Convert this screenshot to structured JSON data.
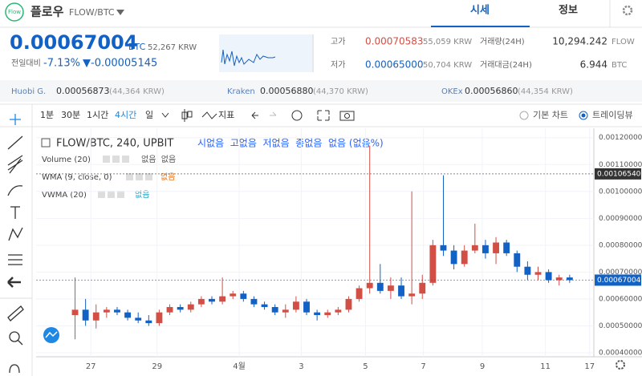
{
  "header": {
    "logo": "Flow",
    "name": "플로우",
    "pair": "FLOW/BTC",
    "tabs": [
      "시세",
      "정보"
    ]
  },
  "price": {
    "value": "0.00067004",
    "unit": "BTC",
    "krw": "52,267 KRW",
    "change_label": "전일대비",
    "change_pct": "-7.13%",
    "change_abs": "▼-0.00005145"
  },
  "stats": [
    {
      "label": "고가",
      "value": "0.00070583",
      "krw": "55,059 KRW"
    },
    {
      "label": "저가",
      "value": "0.00065000",
      "krw": "50,704 KRW"
    },
    {
      "label": "거래량(24H)",
      "value": "10,294.242",
      "unit": "FLOW"
    },
    {
      "label": "거래대금(24H)",
      "value": "6.944",
      "unit": "BTC"
    }
  ],
  "exchanges": [
    {
      "name": "Huobi G.",
      "price": "0.00056873",
      "krw": "(44,364 KRW)"
    },
    {
      "name": "Kraken",
      "price": "0.00056880",
      "krw": "(44,370 KRW)"
    },
    {
      "name": "OKEx",
      "price": "0.00056860",
      "krw": "(44,354 KRW)"
    }
  ],
  "toolbar": {
    "intervals": [
      "1분",
      "30분",
      "1시간",
      "4시간",
      "일"
    ],
    "indicator": "지표",
    "modes": [
      "기본 차트",
      "트레이딩뷰"
    ]
  },
  "chart_data": {
    "type": "candlestick",
    "title": "FLOW/BTC, 240, UPBIT",
    "ohlc_legend": "시없음  고없음  저없음  종없음  없음 (없음%)",
    "studies": [
      {
        "name": "Volume (20)",
        "values": "없음  없음"
      },
      {
        "name": "WMA (9, close, 0)",
        "values": "없음"
      },
      {
        "name": "VWMA (20)",
        "values": "없음"
      }
    ],
    "up_color": "#d24f45",
    "down_color": "#1261c4",
    "candles": [
      {
        "open": 0.00054,
        "high": 0.00068,
        "low": 0.00045,
        "close": 0.00056
      },
      {
        "open": 0.00056,
        "high": 0.0006,
        "low": 0.0005,
        "close": 0.00052
      },
      {
        "open": 0.00052,
        "high": 0.00058,
        "low": 0.00049,
        "close": 0.00055
      },
      {
        "open": 0.00055,
        "high": 0.00057,
        "low": 0.00053,
        "close": 0.00056
      },
      {
        "open": 0.00056,
        "high": 0.00057,
        "low": 0.00054,
        "close": 0.00055
      },
      {
        "open": 0.00055,
        "high": 0.00056,
        "low": 0.00052,
        "close": 0.00053
      },
      {
        "open": 0.00053,
        "high": 0.00055,
        "low": 0.00051,
        "close": 0.00052
      },
      {
        "open": 0.00052,
        "high": 0.00054,
        "low": 0.0005,
        "close": 0.00051
      },
      {
        "open": 0.00051,
        "high": 0.00056,
        "low": 0.0005,
        "close": 0.00055
      },
      {
        "open": 0.00055,
        "high": 0.00058,
        "low": 0.00054,
        "close": 0.00057
      },
      {
        "open": 0.00057,
        "high": 0.00058,
        "low": 0.00055,
        "close": 0.00056
      },
      {
        "open": 0.00056,
        "high": 0.00059,
        "low": 0.00055,
        "close": 0.00058
      },
      {
        "open": 0.00058,
        "high": 0.00061,
        "low": 0.00057,
        "close": 0.0006
      },
      {
        "open": 0.0006,
        "high": 0.00061,
        "low": 0.00058,
        "close": 0.00059
      },
      {
        "open": 0.00059,
        "high": 0.00068,
        "low": 0.00058,
        "close": 0.00061
      },
      {
        "open": 0.00061,
        "high": 0.00063,
        "low": 0.0006,
        "close": 0.00062
      },
      {
        "open": 0.00062,
        "high": 0.00063,
        "low": 0.00059,
        "close": 0.0006
      },
      {
        "open": 0.0006,
        "high": 0.00061,
        "low": 0.00057,
        "close": 0.00058
      },
      {
        "open": 0.00058,
        "high": 0.00059,
        "low": 0.00056,
        "close": 0.00057
      },
      {
        "open": 0.00057,
        "high": 0.00058,
        "low": 0.00054,
        "close": 0.00055
      },
      {
        "open": 0.00055,
        "high": 0.00058,
        "low": 0.00053,
        "close": 0.00056
      },
      {
        "open": 0.00056,
        "high": 0.00061,
        "low": 0.00055,
        "close": 0.00059
      },
      {
        "open": 0.00059,
        "high": 0.0006,
        "low": 0.00054,
        "close": 0.00055
      },
      {
        "open": 0.00055,
        "high": 0.00056,
        "low": 0.00052,
        "close": 0.00054
      },
      {
        "open": 0.00054,
        "high": 0.00056,
        "low": 0.00053,
        "close": 0.00055
      },
      {
        "open": 0.00055,
        "high": 0.00057,
        "low": 0.00054,
        "close": 0.00056
      },
      {
        "open": 0.00056,
        "high": 0.00061,
        "low": 0.00055,
        "close": 0.0006
      },
      {
        "open": 0.0006,
        "high": 0.00065,
        "low": 0.00059,
        "close": 0.00064
      },
      {
        "open": 0.00064,
        "high": 0.00117,
        "low": 0.00062,
        "close": 0.00066
      },
      {
        "open": 0.00066,
        "high": 0.00073,
        "low": 0.00062,
        "close": 0.00063
      },
      {
        "open": 0.00063,
        "high": 0.00068,
        "low": 0.0006,
        "close": 0.00065
      },
      {
        "open": 0.00065,
        "high": 0.00068,
        "low": 0.0006,
        "close": 0.00061
      },
      {
        "open": 0.00061,
        "high": 0.001,
        "low": 0.00058,
        "close": 0.00062
      },
      {
        "open": 0.00062,
        "high": 0.00069,
        "low": 0.0006,
        "close": 0.00066
      },
      {
        "open": 0.00066,
        "high": 0.00082,
        "low": 0.00065,
        "close": 0.0008
      },
      {
        "open": 0.0008,
        "high": 0.00106,
        "low": 0.00076,
        "close": 0.00078
      },
      {
        "open": 0.00078,
        "high": 0.0008,
        "low": 0.00071,
        "close": 0.00073
      },
      {
        "open": 0.00073,
        "high": 0.0008,
        "low": 0.00072,
        "close": 0.00078
      },
      {
        "open": 0.00078,
        "high": 0.00088,
        "low": 0.00077,
        "close": 0.0008
      },
      {
        "open": 0.0008,
        "high": 0.00082,
        "low": 0.00075,
        "close": 0.00077
      },
      {
        "open": 0.00077,
        "high": 0.00083,
        "low": 0.00073,
        "close": 0.00081
      },
      {
        "open": 0.00081,
        "high": 0.00082,
        "low": 0.00076,
        "close": 0.00077
      },
      {
        "open": 0.00077,
        "high": 0.00078,
        "low": 0.0007,
        "close": 0.00072
      },
      {
        "open": 0.00072,
        "high": 0.00074,
        "low": 0.00067,
        "close": 0.00069
      },
      {
        "open": 0.00069,
        "high": 0.00072,
        "low": 0.00067,
        "close": 0.0007
      },
      {
        "open": 0.0007,
        "high": 0.00071,
        "low": 0.00066,
        "close": 0.00067
      },
      {
        "open": 0.00067,
        "high": 0.00069,
        "low": 0.00065,
        "close": 0.00068
      },
      {
        "open": 0.00068,
        "high": 0.00069,
        "low": 0.00066,
        "close": 0.00067004
      }
    ],
    "xlim": [
      -3.7,
      49.3
    ],
    "xticks": [
      {
        "value": 1.5,
        "label": "27"
      },
      {
        "value": 7.8,
        "label": "29"
      },
      {
        "value": 15.6,
        "label": "4월"
      },
      {
        "value": 21.5,
        "label": "3"
      },
      {
        "value": 27.6,
        "label": "5"
      },
      {
        "value": 33.1,
        "label": "7"
      },
      {
        "value": 38.7,
        "label": "9"
      },
      {
        "value": 44.7,
        "label": "11"
      },
      {
        "value": 48.9,
        "label": "17"
      }
    ],
    "ylim": [
      0.000385,
      0.001235
    ],
    "yticks": [
      {
        "value": 0.0004,
        "label": "0.00040000"
      },
      {
        "value": 0.0005,
        "label": "0.00050000"
      },
      {
        "value": 0.0006,
        "label": "0.00060000"
      },
      {
        "value": 0.0007,
        "label": "0.00070000"
      },
      {
        "value": 0.0008,
        "label": "0.00080000"
      },
      {
        "value": 0.0009,
        "label": "0.00090000"
      },
      {
        "value": 0.001,
        "label": "0.00100000"
      },
      {
        "value": 0.0011,
        "label": "0.00110000"
      },
      {
        "value": 0.0012,
        "label": "0.00120000"
      }
    ],
    "grid": true,
    "price_lines": [
      {
        "value": 0.0010654,
        "label": "0.00106540",
        "color": "#333333"
      },
      {
        "value": 0.00067004,
        "label": "0.00067004",
        "color": "#1261c4"
      }
    ]
  }
}
